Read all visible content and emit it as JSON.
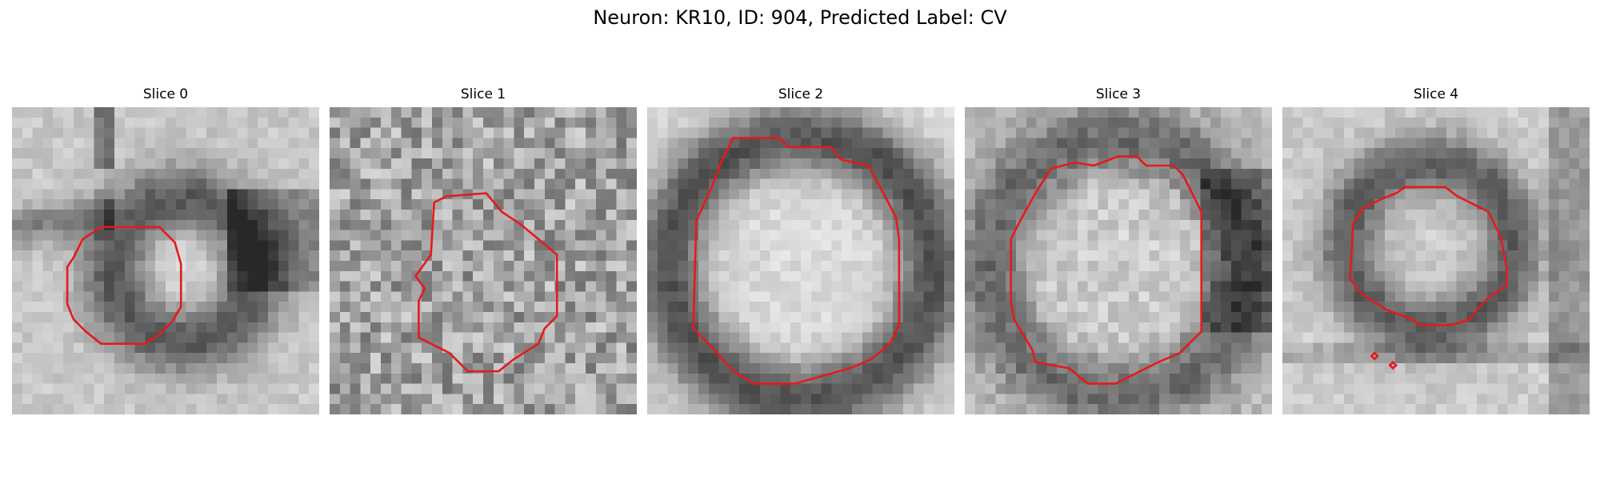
{
  "figure": {
    "title": "Neuron: KR10, ID: 904, Predicted Label: CV"
  },
  "panels": [
    {
      "title": "Slice 0"
    },
    {
      "title": "Slice 1"
    },
    {
      "title": "Slice 2"
    },
    {
      "title": "Slice 3"
    },
    {
      "title": "Slice 4"
    }
  ],
  "colors": {
    "contour": "#e41a1c",
    "colormap": "grayscale"
  }
}
